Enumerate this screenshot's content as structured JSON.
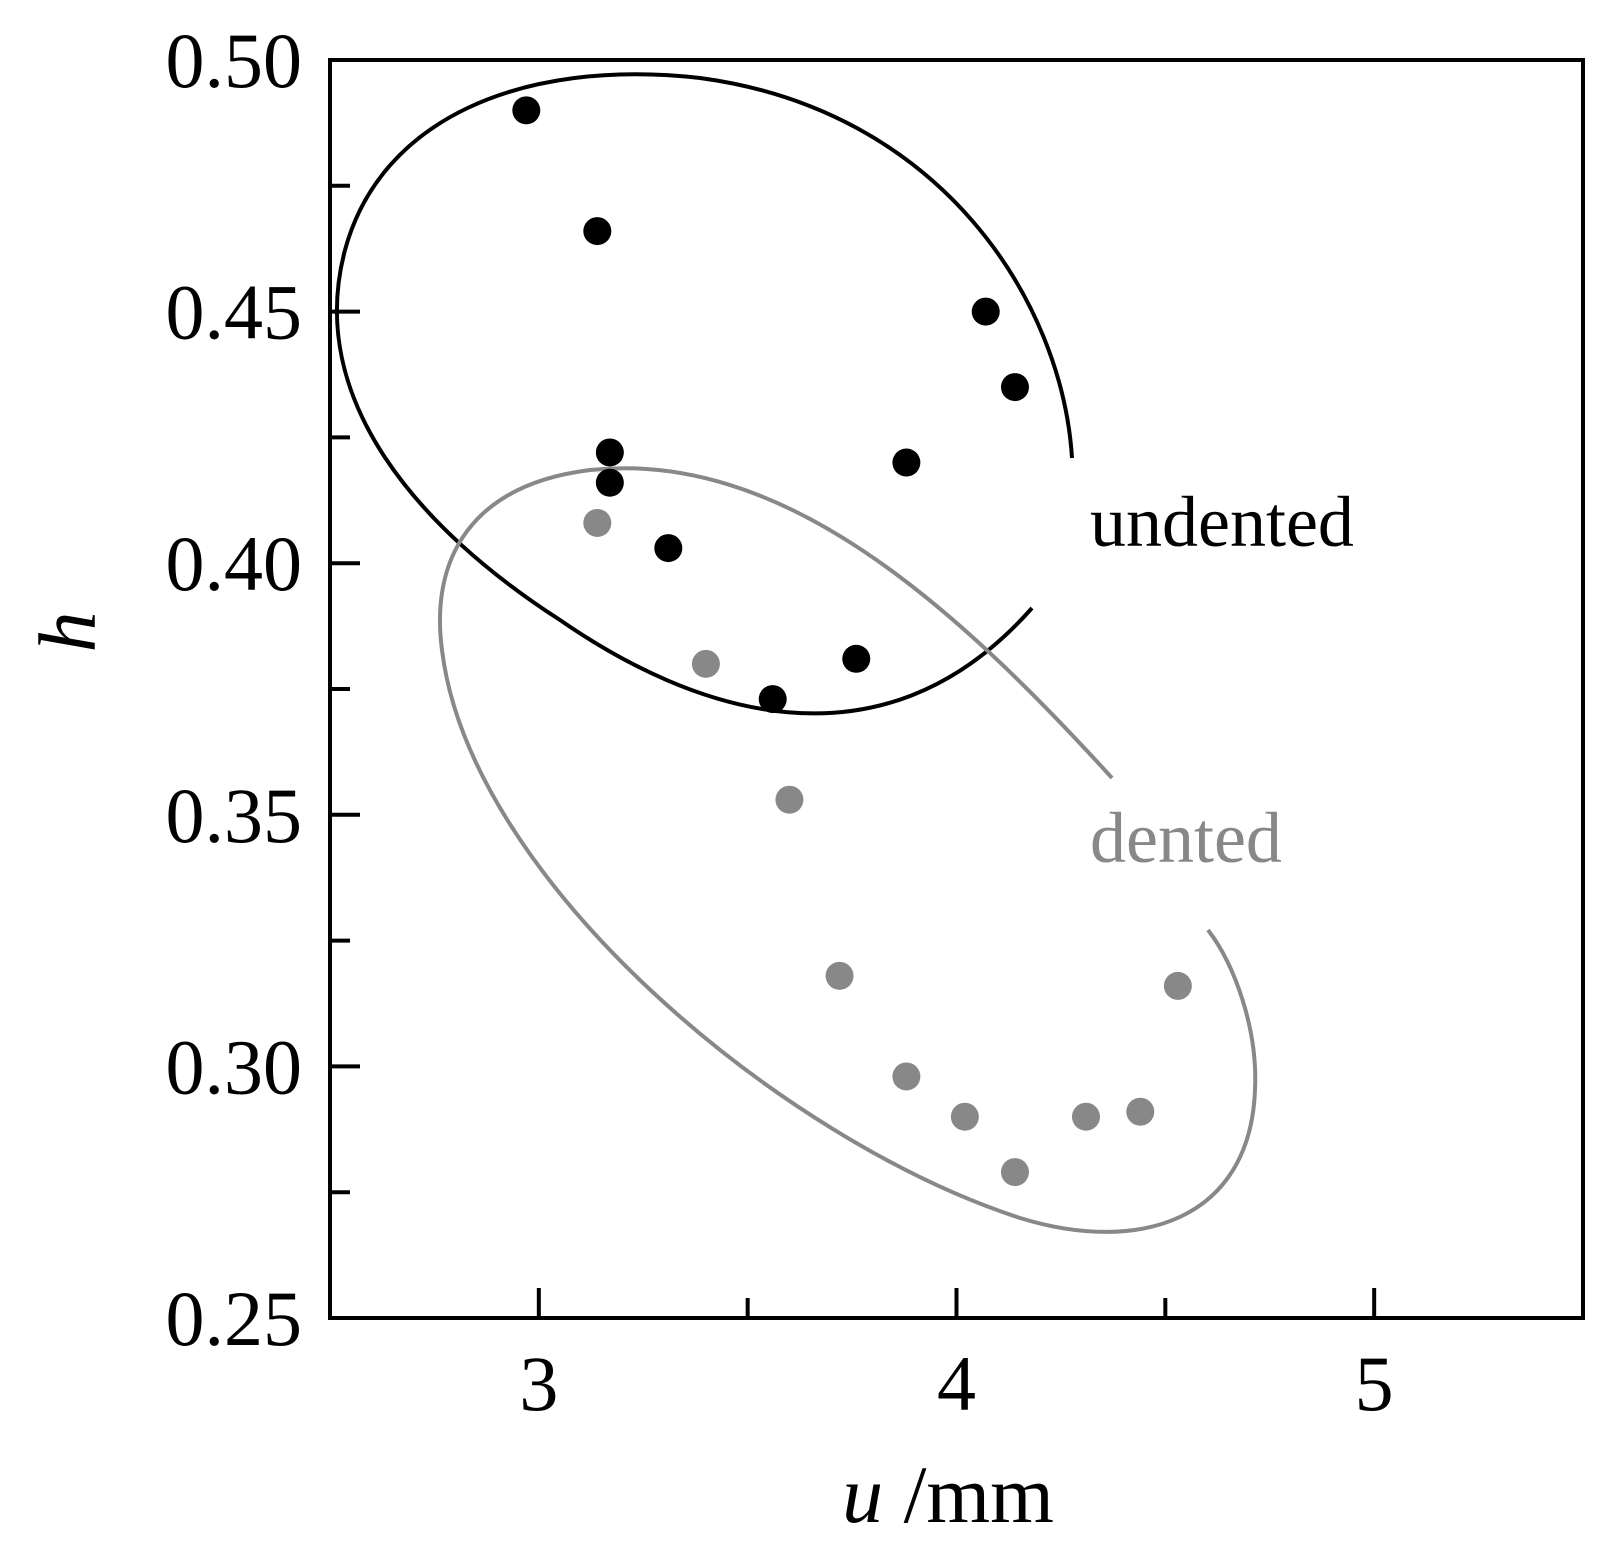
{
  "chart_data": {
    "type": "scatter",
    "title": "",
    "xlabel_var": "u",
    "xlabel_unit": " /mm",
    "ylabel": "h",
    "xlim": [
      2.5,
      5.5
    ],
    "ylim": [
      0.25,
      0.5
    ],
    "x_ticks": [
      3,
      4,
      5
    ],
    "x_tick_labels": [
      "3",
      "4",
      "5"
    ],
    "x_minor_ticks": [
      3.5,
      4.5
    ],
    "y_ticks": [
      0.25,
      0.3,
      0.35,
      0.4,
      0.45,
      0.5
    ],
    "y_tick_labels": [
      "0.25",
      "0.30",
      "0.35",
      "0.40",
      "0.45",
      "0.50"
    ],
    "y_minor_ticks": [
      0.275,
      0.325,
      0.375,
      0.425,
      0.475
    ],
    "grid": false,
    "legend": "none",
    "series": [
      {
        "name": "undented",
        "color": "#000000",
        "points": [
          [
            2.97,
            0.49
          ],
          [
            3.14,
            0.466
          ],
          [
            4.07,
            0.45
          ],
          [
            4.14,
            0.435
          ],
          [
            3.17,
            0.422
          ],
          [
            3.88,
            0.42
          ],
          [
            3.17,
            0.416
          ],
          [
            3.31,
            0.403
          ],
          [
            3.76,
            0.381
          ],
          [
            3.56,
            0.373
          ]
        ]
      },
      {
        "name": "dented",
        "color": "#888888",
        "points": [
          [
            3.14,
            0.408
          ],
          [
            3.4,
            0.38
          ],
          [
            3.6,
            0.353
          ],
          [
            3.72,
            0.318
          ],
          [
            4.53,
            0.316
          ],
          [
            3.88,
            0.298
          ],
          [
            4.02,
            0.29
          ],
          [
            4.31,
            0.29
          ],
          [
            4.44,
            0.291
          ],
          [
            4.14,
            0.279
          ]
        ]
      }
    ],
    "annotations": [
      {
        "text": "undented",
        "color": "#000000"
      },
      {
        "text": "dented",
        "color": "#888888"
      }
    ]
  }
}
